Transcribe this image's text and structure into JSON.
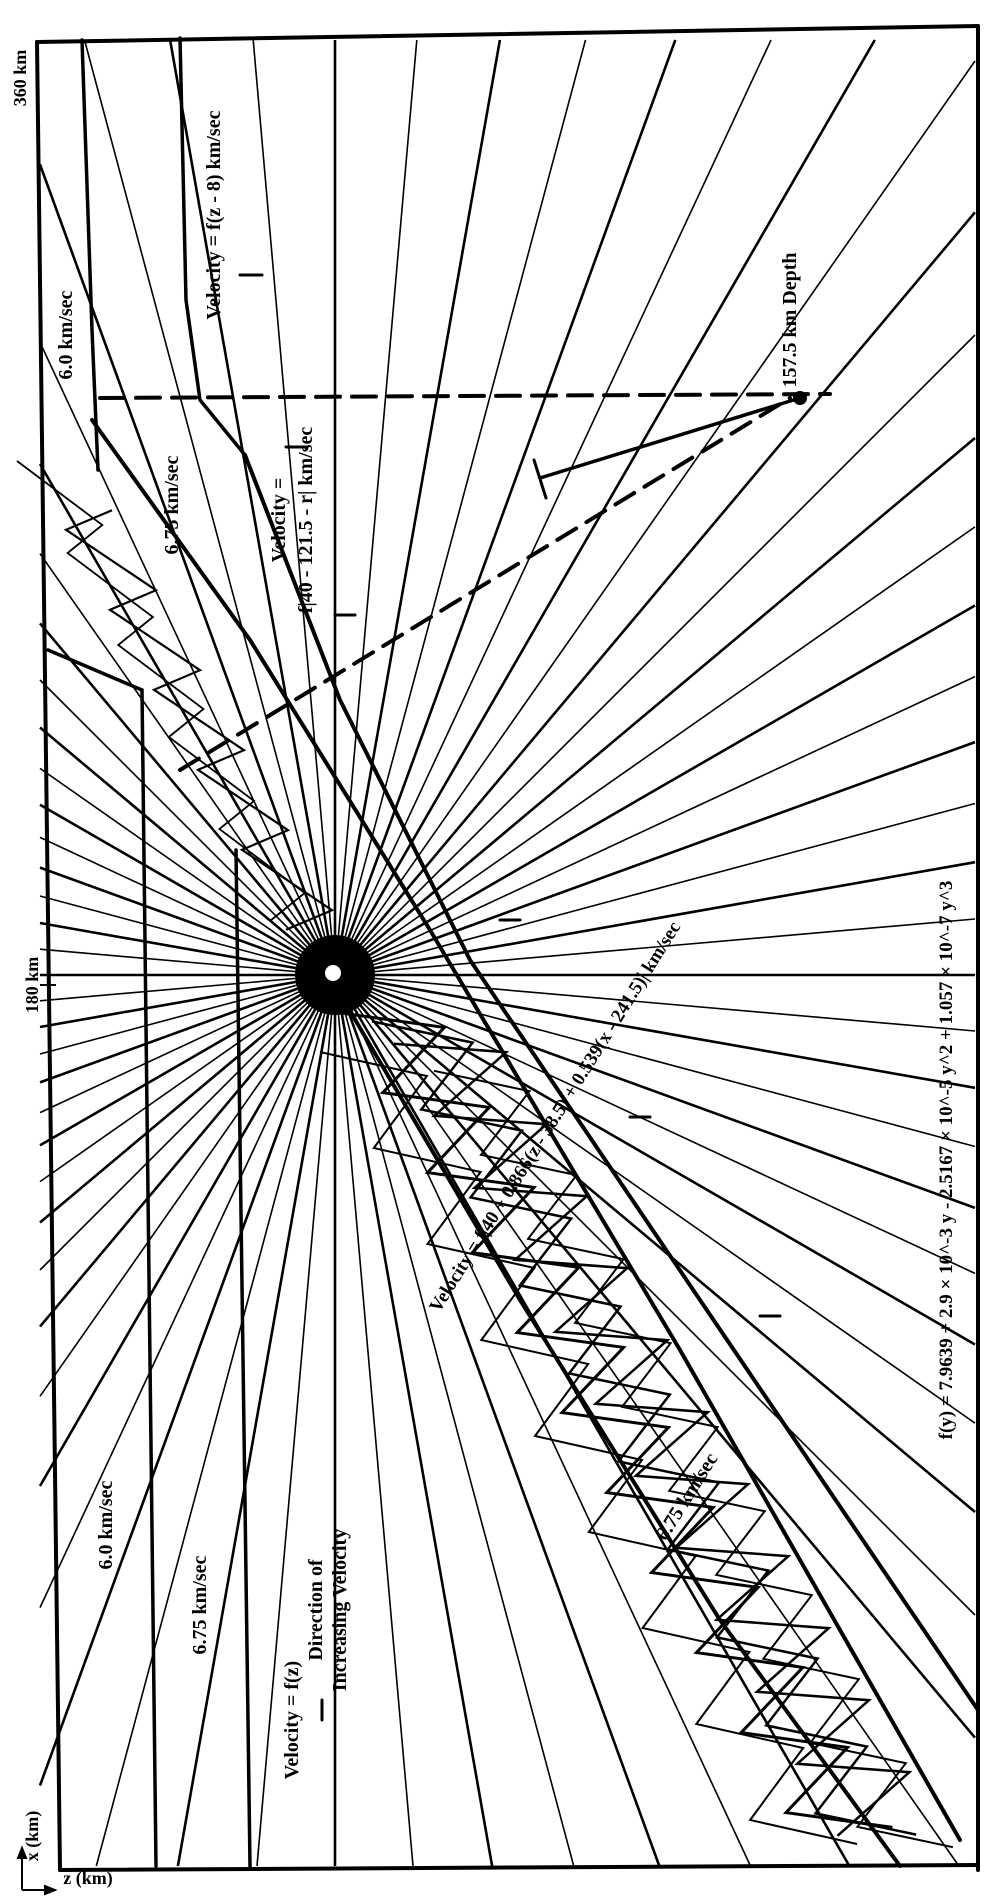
{
  "axes": {
    "tick_360": "360 km",
    "tick_180": "180 km",
    "x_axis": "x (km)",
    "z_axis": "z (km)"
  },
  "labels": {
    "vel_f_z_minus_8": "Velocity = f(z - 8) km/sec",
    "vel_6_0_top": "6.0 km/sec",
    "vel_6_75_top": "6.75 km/sec",
    "depth": "157.5 km Depth",
    "vel_label_mid": "Velocity =",
    "vel_eq_mid": "f|40 - 121.5 - r| km/sec",
    "vel_6_0_bottom": "6.0 km/sec",
    "vel_6_75_bottom": "6.75 km/sec",
    "vel_f_z": "Velocity = f(z)",
    "direction_line1": "Direction of",
    "direction_line2": "Increasing Velocity",
    "vel_slab_eq": "Velocity = f|40 + 0.866(z - 38.5) + 0.539(x - 241.5)| km/sec",
    "vel_slab_675": "6.75 km/sec",
    "fy_eq": "f(y) = 7.9639 + 2.9 × 10^-3 y - 2.5167 × 10^-5 y^2 + 1.057 × 10^-7 y^3"
  },
  "colors": {
    "ink": "#000000",
    "paper": "#ffffff"
  }
}
